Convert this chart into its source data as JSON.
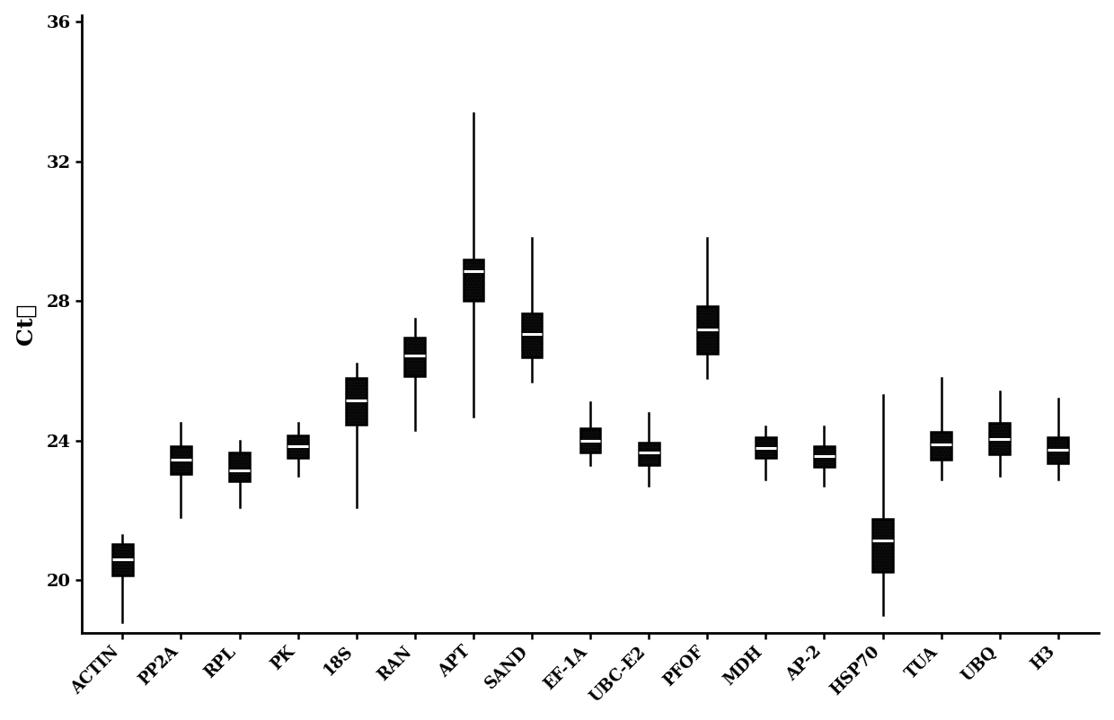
{
  "categories": [
    "ACTIN",
    "PP2A",
    "RPL",
    "PK",
    "18S",
    "RAN",
    "APT",
    "SAND",
    "EF-1A",
    "UBC-E2",
    "PFOF",
    "MDH",
    "AP-2",
    "HSP70",
    "TUA",
    "UBQ",
    "H3"
  ],
  "ylabel": "Ct値",
  "ylim": [
    18.5,
    36.2
  ],
  "yticks": [
    20,
    24,
    28,
    32,
    36
  ],
  "box_data": {
    "ACTIN": {
      "min": 18.8,
      "q1": 20.15,
      "median": 20.6,
      "q3": 21.05,
      "max": 21.3
    },
    "PP2A": {
      "min": 21.8,
      "q1": 23.05,
      "median": 23.45,
      "q3": 23.85,
      "max": 24.5
    },
    "RPL": {
      "min": 22.1,
      "q1": 22.85,
      "median": 23.15,
      "q3": 23.65,
      "max": 24.0
    },
    "PK": {
      "min": 23.0,
      "q1": 23.5,
      "median": 23.85,
      "q3": 24.15,
      "max": 24.5
    },
    "18S": {
      "min": 22.1,
      "q1": 24.45,
      "median": 25.15,
      "q3": 25.8,
      "max": 26.2
    },
    "RAN": {
      "min": 24.3,
      "q1": 25.85,
      "median": 26.45,
      "q3": 26.95,
      "max": 27.5
    },
    "APT": {
      "min": 24.7,
      "q1": 28.0,
      "median": 28.85,
      "q3": 29.2,
      "max": 33.4
    },
    "SAND": {
      "min": 25.7,
      "q1": 26.4,
      "median": 27.05,
      "q3": 27.65,
      "max": 29.8
    },
    "EF-1A": {
      "min": 23.3,
      "q1": 23.65,
      "median": 24.0,
      "q3": 24.35,
      "max": 25.1
    },
    "UBC-E2": {
      "min": 22.7,
      "q1": 23.3,
      "median": 23.65,
      "q3": 23.95,
      "max": 24.8
    },
    "PFOF": {
      "min": 25.8,
      "q1": 26.5,
      "median": 27.2,
      "q3": 27.85,
      "max": 29.8
    },
    "MDH": {
      "min": 22.9,
      "q1": 23.5,
      "median": 23.8,
      "q3": 24.1,
      "max": 24.4
    },
    "AP-2": {
      "min": 22.7,
      "q1": 23.25,
      "median": 23.55,
      "q3": 23.85,
      "max": 24.4
    },
    "HSP70": {
      "min": 19.0,
      "q1": 20.25,
      "median": 21.15,
      "q3": 21.75,
      "max": 25.3
    },
    "TUA": {
      "min": 22.9,
      "q1": 23.45,
      "median": 23.9,
      "q3": 24.25,
      "max": 25.8
    },
    "UBQ": {
      "min": 23.0,
      "q1": 23.6,
      "median": 24.05,
      "q3": 24.5,
      "max": 25.4
    },
    "H3": {
      "min": 22.9,
      "q1": 23.35,
      "median": 23.75,
      "q3": 24.1,
      "max": 25.2
    }
  },
  "box_facecolor": "#0d0d0d",
  "median_color": "#ffffff",
  "whisker_color": "#000000",
  "background_color": "#ffffff",
  "axis_fontsize": 16,
  "tick_fontsize": 13,
  "box_width": 0.35,
  "linewidth": 1.8
}
